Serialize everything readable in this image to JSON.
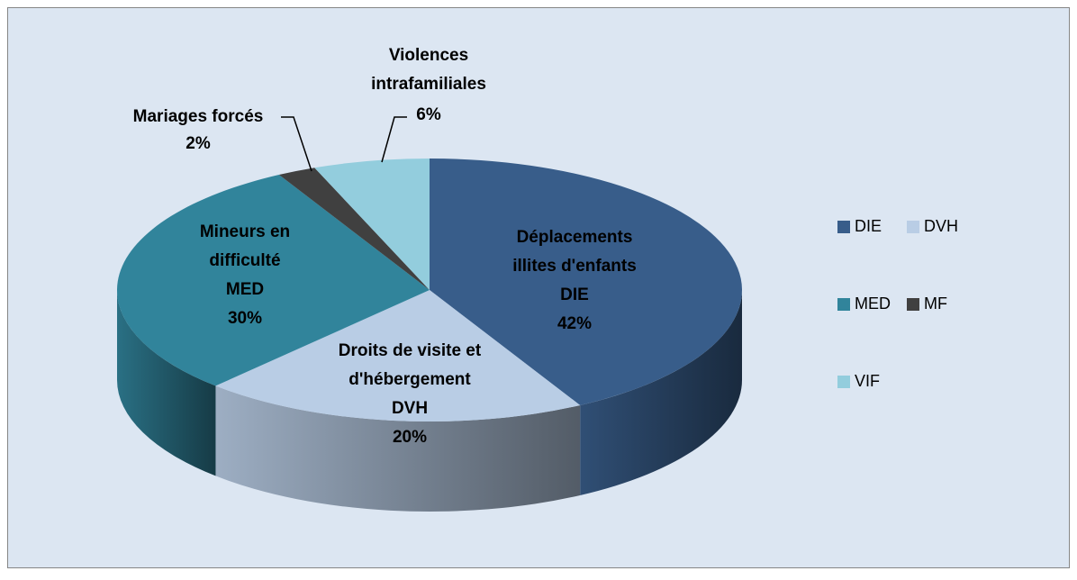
{
  "chart_data": {
    "type": "pie3d",
    "categories": [
      "DIE",
      "DVH",
      "MED",
      "MF",
      "VIF"
    ],
    "values": [
      42,
      20,
      30,
      2,
      6
    ],
    "value_labels": [
      "42%",
      "20%",
      "30%",
      "2%",
      "6%"
    ],
    "slice_labels": [
      [
        "Déplacements",
        "illites d'enfants",
        "DIE"
      ],
      [
        "Droits de visite et",
        "d'hébergement",
        "DVH"
      ],
      [
        "Mineurs en",
        "difficulté",
        "MED"
      ],
      [
        "Mariages forcés"
      ],
      [
        "Violences",
        "intrafamiliales"
      ]
    ],
    "colors": [
      "#385d8a",
      "#b9cde5",
      "#31849b",
      "#404040",
      "#93cddd"
    ],
    "legend": "right"
  }
}
